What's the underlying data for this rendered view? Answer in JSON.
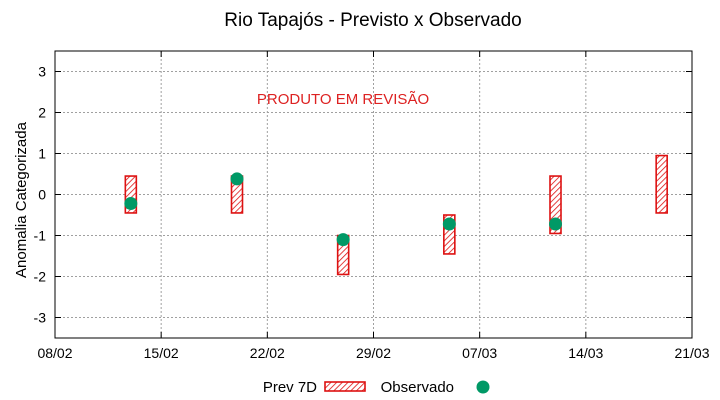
{
  "chart_data": {
    "type": "range-bar",
    "title": "Rio Tapajós - Previsto x Observado",
    "ylabel": "Anomalia Categorizada",
    "xlabel": "",
    "annotation": "PRODUTO EM REVISÃO",
    "ylim": [
      -3.5,
      3.5
    ],
    "yticks": [
      3,
      2,
      1,
      0,
      -1,
      -2,
      -3
    ],
    "ytick_labels": [
      "3",
      "2",
      "1",
      "0",
      "-1",
      "-2",
      "-3"
    ],
    "xlim_days": [
      0,
      42
    ],
    "xticks_days": [
      0,
      7,
      14,
      21,
      28,
      35,
      42
    ],
    "xtick_labels": [
      "08/02",
      "15/02",
      "22/02",
      "29/02",
      "07/03",
      "14/03",
      "21/03"
    ],
    "grid": true,
    "legend_position": "bottom",
    "series": [
      {
        "name": "Prev 7D",
        "kind": "range",
        "color": "#dd1111",
        "points": [
          {
            "day": 5,
            "low": -0.45,
            "high": 0.45
          },
          {
            "day": 12,
            "low": -0.45,
            "high": 0.45
          },
          {
            "day": 19,
            "low": -1.95,
            "high": -1.0
          },
          {
            "day": 26,
            "low": -1.45,
            "high": -0.5
          },
          {
            "day": 33,
            "low": -0.95,
            "high": 0.45
          },
          {
            "day": 40,
            "low": -0.45,
            "high": 0.95
          }
        ]
      },
      {
        "name": "Observado",
        "kind": "point",
        "color": "#009966",
        "points": [
          {
            "day": 5,
            "value": -0.22
          },
          {
            "day": 12,
            "value": 0.38
          },
          {
            "day": 19,
            "value": -1.1
          },
          {
            "day": 26,
            "value": -0.72
          },
          {
            "day": 33,
            "value": -0.72
          }
        ]
      }
    ]
  }
}
